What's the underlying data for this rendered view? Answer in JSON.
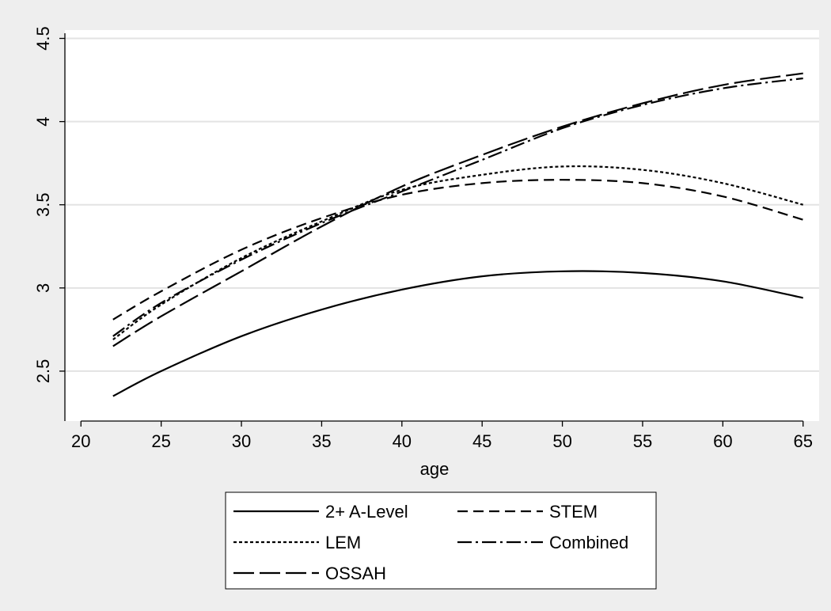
{
  "chart_data": {
    "type": "line",
    "title": "",
    "xlabel": "age",
    "ylabel": "",
    "xlim": [
      19,
      66
    ],
    "ylim": [
      2.2,
      4.55
    ],
    "x_ticks": [
      20,
      25,
      30,
      35,
      40,
      45,
      50,
      55,
      60,
      65
    ],
    "y_ticks": [
      2.5,
      3,
      3.5,
      4,
      4.5
    ],
    "y_tick_labels": [
      "2.5",
      "3",
      "3.5",
      "4",
      "4.5"
    ],
    "grid": "horizontal",
    "legend_position": "bottom",
    "x": [
      22,
      25,
      30,
      35,
      40,
      45,
      50,
      55,
      60,
      65
    ],
    "series": [
      {
        "name": "2+ A-Level",
        "dash": "solid",
        "values": [
          2.35,
          2.5,
          2.71,
          2.87,
          2.99,
          3.07,
          3.1,
          3.09,
          3.04,
          2.94
        ]
      },
      {
        "name": "STEM",
        "dash": "dashed",
        "values": [
          2.81,
          2.98,
          3.23,
          3.42,
          3.56,
          3.63,
          3.65,
          3.63,
          3.55,
          3.41
        ]
      },
      {
        "name": "LEM",
        "dash": "dotted",
        "values": [
          2.69,
          2.9,
          3.18,
          3.4,
          3.59,
          3.68,
          3.73,
          3.71,
          3.63,
          3.5
        ]
      },
      {
        "name": "Combined",
        "dash": "dashdot",
        "values": [
          2.71,
          2.91,
          3.17,
          3.39,
          3.58,
          3.77,
          3.96,
          4.1,
          4.2,
          4.26
        ]
      },
      {
        "name": "OSSAH",
        "dash": "longdash",
        "values": [
          2.65,
          2.83,
          3.1,
          3.37,
          3.61,
          3.8,
          3.97,
          4.11,
          4.22,
          4.29
        ]
      }
    ]
  }
}
